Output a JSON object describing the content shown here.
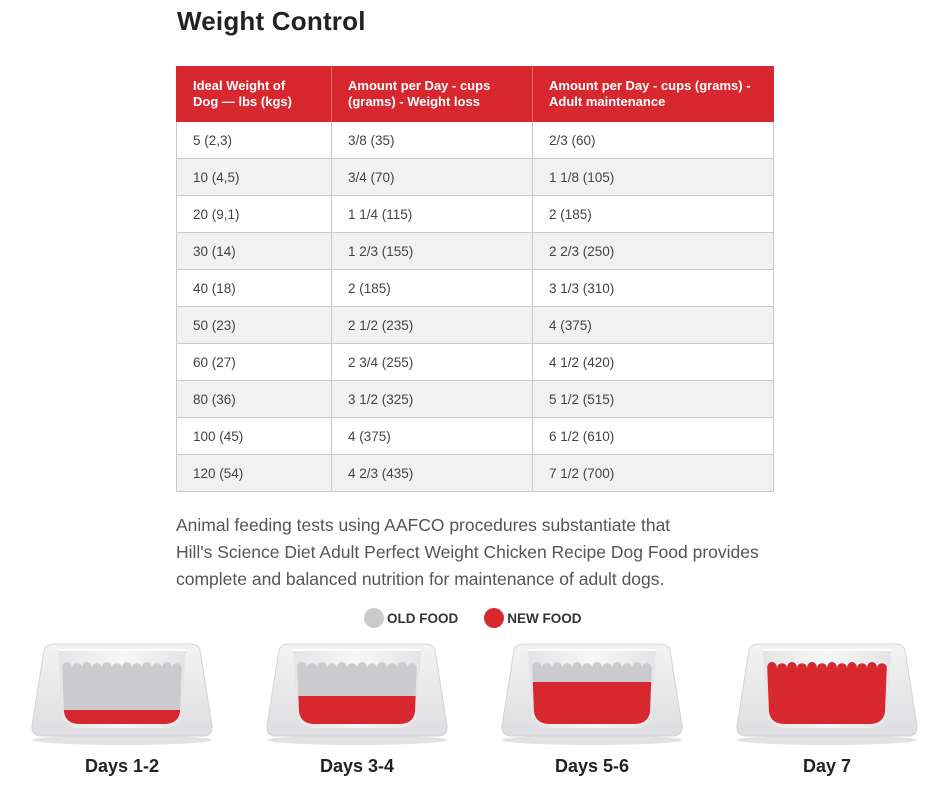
{
  "title": "Weight Control",
  "table": {
    "headers": [
      "Ideal Weight of Dog — lbs (kgs)",
      "Amount per Day - cups (grams) - Weight loss",
      "Amount per Day - cups (grams) - Adult maintenance"
    ],
    "header_lines": [
      [
        "Ideal Weight of",
        "Dog — lbs (kgs)"
      ],
      [
        "Amount per Day - cups",
        "(grams) - Weight loss"
      ],
      [
        "Amount per Day - cups (grams) -",
        "Adult maintenance"
      ]
    ],
    "rows": [
      [
        "5 (2,3)",
        "3/8 (35)",
        "2/3 (60)"
      ],
      [
        "10 (4,5)",
        "3/4 (70)",
        "1 1/8 (105)"
      ],
      [
        "20 (9,1)",
        "1 1/4 (115)",
        "2 (185)"
      ],
      [
        "30 (14)",
        "1 2/3 (155)",
        "2 2/3 (250)"
      ],
      [
        "40 (18)",
        "2 (185)",
        "3 1/3 (310)"
      ],
      [
        "50 (23)",
        "2 1/2 (235)",
        "4 (375)"
      ],
      [
        "60 (27)",
        "2 3/4 (255)",
        "4 1/2 (420)"
      ],
      [
        "80 (36)",
        "3 1/2 (325)",
        "5 1/2 (515)"
      ],
      [
        "100 (45)",
        "4 (375)",
        "6 1/2 (610)"
      ],
      [
        "120 (54)",
        "4 2/3 (435)",
        "7 1/2 (700)"
      ]
    ]
  },
  "paragraph": {
    "lines": [
      "Animal feeding tests using AAFCO procedures substantiate that",
      "Hill's Science Diet Adult Perfect Weight Chicken Recipe Dog Food provides",
      "complete and balanced nutrition for maintenance of adult dogs."
    ]
  },
  "legend": {
    "old_food_label": "OLD FOOD",
    "new_food_label": "NEW FOOD",
    "old_food_color": "#cbcbcd",
    "new_food_color": "#d7282f"
  },
  "transition": [
    {
      "label": "Days 1-2",
      "new_food_fraction": 0.25
    },
    {
      "label": "Days 3-4",
      "new_food_fraction": 0.5
    },
    {
      "label": "Days 5-6",
      "new_food_fraction": 0.75
    },
    {
      "label": "Day 7",
      "new_food_fraction": 1.0
    }
  ]
}
